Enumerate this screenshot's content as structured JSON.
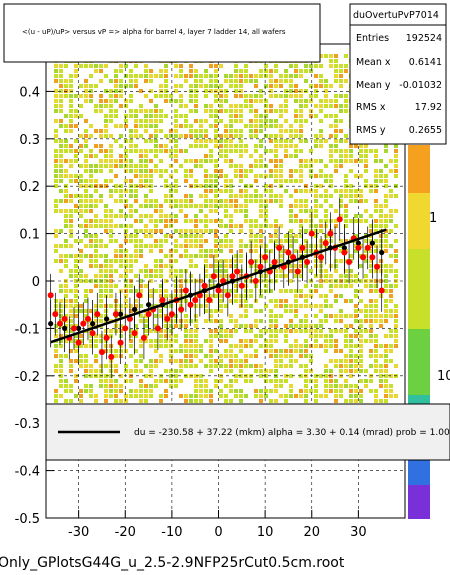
{
  "canvas": {
    "background": "#ffffff"
  },
  "title_box": {
    "text": "<(u - uP)/uP> versus   vP => alpha for barrel 4, layer 7 ladder 14, all wafers"
  },
  "stats_box": {
    "name": "duOvertuPvP7014",
    "rows": [
      {
        "label": "Entries",
        "value": "192524"
      },
      {
        "label": "Mean x",
        "value": "0.6141"
      },
      {
        "label": "Mean y",
        "value": "-0.01032"
      },
      {
        "label": "RMS x",
        "value": "17.92"
      },
      {
        "label": "RMS y",
        "value": "0.2655"
      }
    ]
  },
  "fit_legend": {
    "text": "du = -230.58 +  37.22 (mkm) alpha =     3.30 +   0.14 (mrad) prob = 1.000"
  },
  "footer": {
    "text": "Only_GPlotsG44G_u_2.5-2.9NFP25rCut0.5cm.root"
  },
  "colorbar": {
    "labels": [
      "1",
      "1",
      "10"
    ]
  },
  "colors": {
    "heat_low": "#c8e02a",
    "heat_mid": "#e8d833",
    "heat_high": "#f0a020",
    "profile_red": "#ff0000",
    "profile_black": "#000000",
    "fit_line": "#000000"
  },
  "chart_data": {
    "type": "scatter",
    "title": "<(u - uP)/uP> versus   vP => alpha for barrel 4, layer 7 ladder 14, all wafers",
    "xlabel": "",
    "ylabel": "",
    "xlim": [
      -37,
      40
    ],
    "ylim": [
      -0.5,
      0.5
    ],
    "x_ticks": [
      -30,
      -20,
      -10,
      0,
      10,
      20,
      30
    ],
    "y_ticks": [
      -0.5,
      -0.4,
      -0.3,
      -0.2,
      -0.1,
      0,
      0.1,
      0.2,
      0.3,
      0.4
    ],
    "grid": true,
    "background_density": "2D histogram filling the plot area (yellow-green)",
    "fit": {
      "slope": 0.0033,
      "intercept": -0.0104,
      "x_range": [
        -36,
        36
      ]
    },
    "series": [
      {
        "name": "",
        "color": "#ff0000",
        "x": [
          -36,
          -35,
          -34,
          -33,
          -32,
          -31,
          -30,
          -29,
          -28,
          -27,
          -26,
          -25,
          -24,
          -23,
          -22,
          -21,
          -20,
          -19,
          -18,
          -17,
          -16,
          -15,
          -14,
          -13,
          -12,
          -11,
          -10,
          -9,
          -8,
          -7,
          -6,
          -5,
          -4,
          -3,
          -2,
          -1,
          0,
          1,
          2,
          3,
          4,
          5,
          6,
          7,
          8,
          9,
          10,
          11,
          12,
          13,
          14,
          15,
          16,
          17,
          18,
          19,
          20,
          21,
          22,
          23,
          24,
          25,
          26,
          27,
          28,
          29,
          30,
          31,
          32,
          33,
          34,
          35
        ],
        "y": [
          -0.03,
          -0.07,
          -0.09,
          -0.08,
          -0.12,
          -0.1,
          -0.13,
          -0.09,
          -0.08,
          -0.11,
          -0.07,
          -0.15,
          -0.12,
          -0.16,
          -0.07,
          -0.13,
          -0.1,
          -0.08,
          -0.11,
          -0.03,
          -0.12,
          -0.07,
          -0.06,
          -0.1,
          -0.04,
          -0.08,
          -0.07,
          -0.04,
          -0.06,
          -0.02,
          -0.05,
          -0.04,
          -0.03,
          -0.01,
          -0.04,
          0.01,
          -0.02,
          0.0,
          -0.03,
          0.01,
          0.02,
          -0.01,
          0.01,
          0.04,
          0.0,
          0.03,
          0.05,
          0.02,
          0.04,
          0.07,
          0.03,
          0.06,
          0.05,
          0.02,
          0.07,
          0.04,
          0.1,
          0.06,
          0.05,
          0.08,
          0.1,
          0.07,
          0.13,
          0.06,
          0.04,
          0.09,
          0.07,
          0.05,
          0.07,
          0.05,
          0.03,
          -0.02
        ]
      },
      {
        "name": "",
        "color": "#000000",
        "x": [
          -36,
          -33,
          -30,
          -27,
          -24,
          -21,
          -18,
          -15,
          -12,
          -9,
          -6,
          -3,
          0,
          3,
          6,
          9,
          12,
          15,
          18,
          21,
          24,
          27,
          30,
          33,
          35
        ],
        "y": [
          -0.09,
          -0.1,
          -0.1,
          -0.09,
          -0.08,
          -0.07,
          -0.06,
          -0.05,
          -0.05,
          -0.04,
          -0.03,
          -0.02,
          -0.01,
          0.0,
          0.01,
          0.02,
          0.03,
          0.04,
          0.05,
          0.06,
          0.07,
          0.07,
          0.08,
          0.08,
          0.06
        ]
      }
    ]
  }
}
